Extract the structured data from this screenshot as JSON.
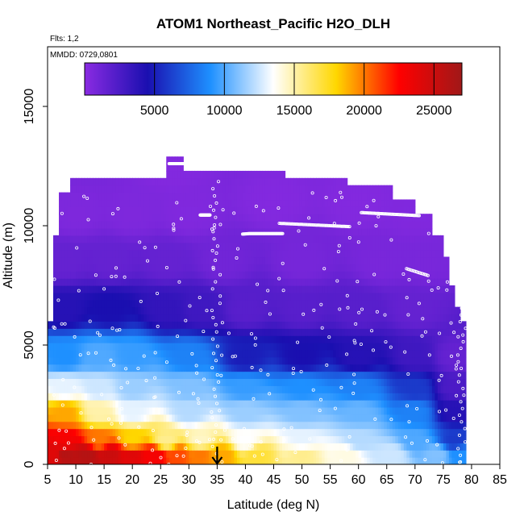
{
  "chart_data": {
    "type": "heatmap",
    "title": "ATOM1 Northeast_Pacific H2O_DLH",
    "subtitle_flights": "Flts: 1,2",
    "subtitle_dates": "MMDD: 0729,0801",
    "xlabel": "Latitude (deg N)",
    "ylabel": "Altitude (m)",
    "xlim": [
      5,
      85
    ],
    "ylim": [
      0,
      17500
    ],
    "x_ticks": [
      5,
      10,
      15,
      20,
      25,
      30,
      35,
      40,
      45,
      50,
      55,
      60,
      65,
      70,
      75,
      80,
      85
    ],
    "y_ticks": [
      0,
      5000,
      10000,
      15000
    ],
    "colorbar": {
      "range": [
        0,
        27000
      ],
      "ticks": [
        5000,
        10000,
        15000,
        20000,
        25000
      ],
      "colors": [
        "#8a2be2",
        "#1a0fb0",
        "#1e90ff",
        "#ffffff",
        "#ffd700",
        "#ff0000",
        "#a01818"
      ]
    },
    "marker_latitude": 35,
    "series": [
      {
        "values": [
          [
            6,
            400,
            24000
          ],
          [
            8,
            400,
            26000
          ],
          [
            12,
            400,
            26000
          ],
          [
            16,
            400,
            25000
          ],
          [
            20,
            400,
            24000
          ],
          [
            24,
            400,
            23000
          ],
          [
            28,
            400,
            21000
          ],
          [
            32,
            400,
            20000
          ],
          [
            36,
            400,
            19000
          ],
          [
            42,
            400,
            17000
          ],
          [
            50,
            400,
            15500
          ],
          [
            58,
            400,
            14000
          ],
          [
            66,
            400,
            12500
          ],
          [
            74,
            400,
            11000
          ],
          [
            78,
            400,
            9000
          ],
          [
            8,
            1000,
            23000
          ],
          [
            14,
            1000,
            20000
          ],
          [
            20,
            1000,
            18000
          ],
          [
            26,
            1000,
            15500
          ],
          [
            32,
            1000,
            14500
          ],
          [
            40,
            1000,
            13500
          ],
          [
            50,
            1000,
            13000
          ],
          [
            60,
            1000,
            12000
          ],
          [
            70,
            1000,
            10000
          ],
          [
            77,
            1000,
            6000
          ],
          [
            8,
            2200,
            19000
          ],
          [
            14,
            2200,
            15000
          ],
          [
            20,
            2200,
            13000
          ],
          [
            30,
            2200,
            12000
          ],
          [
            40,
            2200,
            11500
          ],
          [
            50,
            2200,
            11000
          ],
          [
            60,
            2200,
            10500
          ],
          [
            70,
            2200,
            8500
          ],
          [
            77,
            2200,
            4000
          ],
          [
            8,
            3200,
            13000
          ],
          [
            14,
            3200,
            12500
          ],
          [
            20,
            3200,
            11500
          ],
          [
            30,
            3200,
            11000
          ],
          [
            40,
            3200,
            9500
          ],
          [
            50,
            3200,
            9000
          ],
          [
            60,
            3200,
            8500
          ],
          [
            70,
            3200,
            6000
          ],
          [
            77,
            3200,
            2500
          ],
          [
            8,
            4500,
            9000
          ],
          [
            14,
            4500,
            10000
          ],
          [
            20,
            4500,
            9500
          ],
          [
            30,
            4500,
            8500
          ],
          [
            40,
            4500,
            5000
          ],
          [
            50,
            4500,
            4500
          ],
          [
            60,
            4500,
            4000
          ],
          [
            70,
            4500,
            3000
          ],
          [
            77,
            4500,
            1500
          ],
          [
            8,
            6500,
            4000
          ],
          [
            16,
            6500,
            4500
          ],
          [
            26,
            6500,
            3500
          ],
          [
            32,
            6500,
            3000
          ],
          [
            40,
            6500,
            2000
          ],
          [
            50,
            6500,
            2000
          ],
          [
            60,
            6500,
            2000
          ],
          [
            70,
            6500,
            1500
          ],
          [
            8,
            8500,
            1500
          ],
          [
            16,
            8500,
            1500
          ],
          [
            26,
            8500,
            1500
          ],
          [
            36,
            8500,
            1000
          ],
          [
            50,
            8500,
            800
          ],
          [
            64,
            8500,
            700
          ],
          [
            72,
            8500,
            700
          ],
          [
            10,
            10500,
            500
          ],
          [
            20,
            10500,
            500
          ],
          [
            30,
            10500,
            400
          ],
          [
            45,
            11000,
            300
          ],
          [
            60,
            11000,
            300
          ],
          [
            70,
            10500,
            400
          ],
          [
            27,
            12500,
            300
          ]
        ]
      }
    ]
  }
}
